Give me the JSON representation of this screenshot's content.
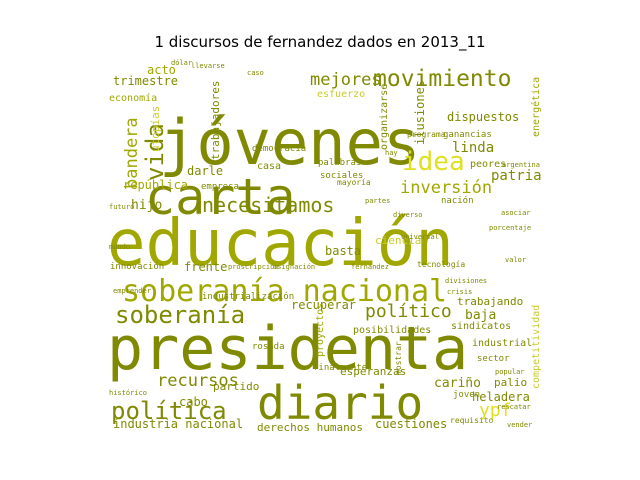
{
  "title": "1 discursos de fernandez dados en 2013_11",
  "colors": {
    "dark": "#808a00",
    "mid": "#a0a800",
    "light": "#c8cc2a",
    "bright": "#e0e020"
  },
  "words": [
    {
      "text": "jóvenes",
      "color": "dark"
    },
    {
      "text": "educación",
      "color": "mid"
    },
    {
      "text": "presidenta",
      "color": "dark"
    },
    {
      "text": "carta",
      "color": "dark"
    },
    {
      "text": "diario",
      "color": "dark"
    },
    {
      "text": "soberanía nacional",
      "color": "mid"
    },
    {
      "text": "movimiento",
      "color": "dark"
    },
    {
      "text": "necesitamos",
      "color": "dark"
    },
    {
      "text": "soberanía",
      "color": "dark"
    },
    {
      "text": "política",
      "color": "dark"
    },
    {
      "text": "idea",
      "color": "bright"
    },
    {
      "text": "inversión",
      "color": "mid"
    },
    {
      "text": "vida",
      "color": "dark"
    },
    {
      "text": "político",
      "color": "dark"
    },
    {
      "text": "mejores",
      "color": "dark"
    },
    {
      "text": "recursos",
      "color": "dark"
    },
    {
      "text": "bandera",
      "color": "mid"
    },
    {
      "text": "linda",
      "color": "dark"
    },
    {
      "text": "ypf",
      "color": "bright"
    },
    {
      "text": "patria",
      "color": "dark"
    },
    {
      "text": "hijo",
      "color": "dark"
    },
    {
      "text": "cariño",
      "color": "dark"
    },
    {
      "text": "industria nacional",
      "color": "dark"
    },
    {
      "text": "cuestiones",
      "color": "dark"
    },
    {
      "text": "recuperar",
      "color": "dark"
    },
    {
      "text": "esperanzas",
      "color": "dark"
    },
    {
      "text": "baja",
      "color": "dark"
    },
    {
      "text": "heladera",
      "color": "dark"
    },
    {
      "text": "palio",
      "color": "dark"
    },
    {
      "text": "partido",
      "color": "dark"
    },
    {
      "text": "cabo",
      "color": "dark"
    },
    {
      "text": "derechos humanos",
      "color": "dark"
    },
    {
      "text": "acto",
      "color": "mid"
    },
    {
      "text": "trimestre",
      "color": "dark"
    },
    {
      "text": "trabajando",
      "color": "dark"
    },
    {
      "text": "ilusiones",
      "color": "dark"
    },
    {
      "text": "dispuestos",
      "color": "dark"
    },
    {
      "text": "república",
      "color": "mid"
    },
    {
      "text": "darle",
      "color": "dark"
    },
    {
      "text": "utopías",
      "color": "light"
    },
    {
      "text": "trabajadores",
      "color": "dark"
    },
    {
      "text": "economía",
      "color": "mid"
    },
    {
      "text": "frente",
      "color": "dark"
    },
    {
      "text": "innovación",
      "color": "dark"
    },
    {
      "text": "ciencia",
      "color": "light"
    },
    {
      "text": "posibilidades",
      "color": "dark"
    },
    {
      "text": "sindicatos",
      "color": "dark"
    },
    {
      "text": "industrial",
      "color": "dark"
    },
    {
      "text": "sector",
      "color": "dark"
    },
    {
      "text": "competitividad",
      "color": "light"
    },
    {
      "text": "energética",
      "color": "mid"
    },
    {
      "text": "proyectos",
      "color": "mid"
    },
    {
      "text": "basta",
      "color": "dark"
    },
    {
      "text": "peores",
      "color": "dark"
    },
    {
      "text": "organizarse",
      "color": "dark"
    },
    {
      "text": "esfuerzo",
      "color": "light"
    },
    {
      "text": "democracia",
      "color": "dark"
    },
    {
      "text": "industrialización",
      "color": "dark"
    },
    {
      "text": "joven",
      "color": "dark"
    },
    {
      "text": "casa",
      "color": "dark"
    },
    {
      "text": "palabras",
      "color": "dark"
    },
    {
      "text": "sociales",
      "color": "dark"
    },
    {
      "text": "empresa",
      "color": "dark"
    },
    {
      "text": "tecnología",
      "color": "dark"
    },
    {
      "text": "mayoría",
      "color": "dark"
    },
    {
      "text": "rosada",
      "color": "dark"
    },
    {
      "text": "finalmente",
      "color": "dark"
    },
    {
      "text": "nación",
      "color": "dark"
    },
    {
      "text": "requisito",
      "color": "dark"
    },
    {
      "text": "programa",
      "color": "dark"
    },
    {
      "text": "ganancias",
      "color": "dark"
    },
    {
      "text": "porcentaje",
      "color": "dark"
    },
    {
      "text": "hay",
      "color": "dark"
    },
    {
      "text": "argentina",
      "color": "dark"
    },
    {
      "text": "histórico",
      "color": "dark"
    },
    {
      "text": "popular",
      "color": "dark"
    },
    {
      "text": "rescatar",
      "color": "dark"
    },
    {
      "text": "vender",
      "color": "dark"
    },
    {
      "text": "asociar",
      "color": "dark"
    },
    {
      "text": "partes",
      "color": "dark"
    },
    {
      "text": "fernandez",
      "color": "dark"
    },
    {
      "text": "diverso",
      "color": "dark"
    },
    {
      "text": "universal",
      "color": "dark"
    },
    {
      "text": "mundo",
      "color": "dark"
    },
    {
      "text": "mostrar",
      "color": "dark"
    },
    {
      "text": "emprender",
      "color": "dark"
    },
    {
      "text": "asignación",
      "color": "dark"
    },
    {
      "text": "proscripción",
      "color": "dark"
    },
    {
      "text": "divisiones",
      "color": "dark"
    },
    {
      "text": "dólar",
      "color": "dark"
    },
    {
      "text": "crisis",
      "color": "dark"
    },
    {
      "text": "valor",
      "color": "dark"
    },
    {
      "text": "futuro",
      "color": "dark"
    },
    {
      "text": "caso",
      "color": "dark"
    },
    {
      "text": "llevarse",
      "color": "dark"
    }
  ]
}
